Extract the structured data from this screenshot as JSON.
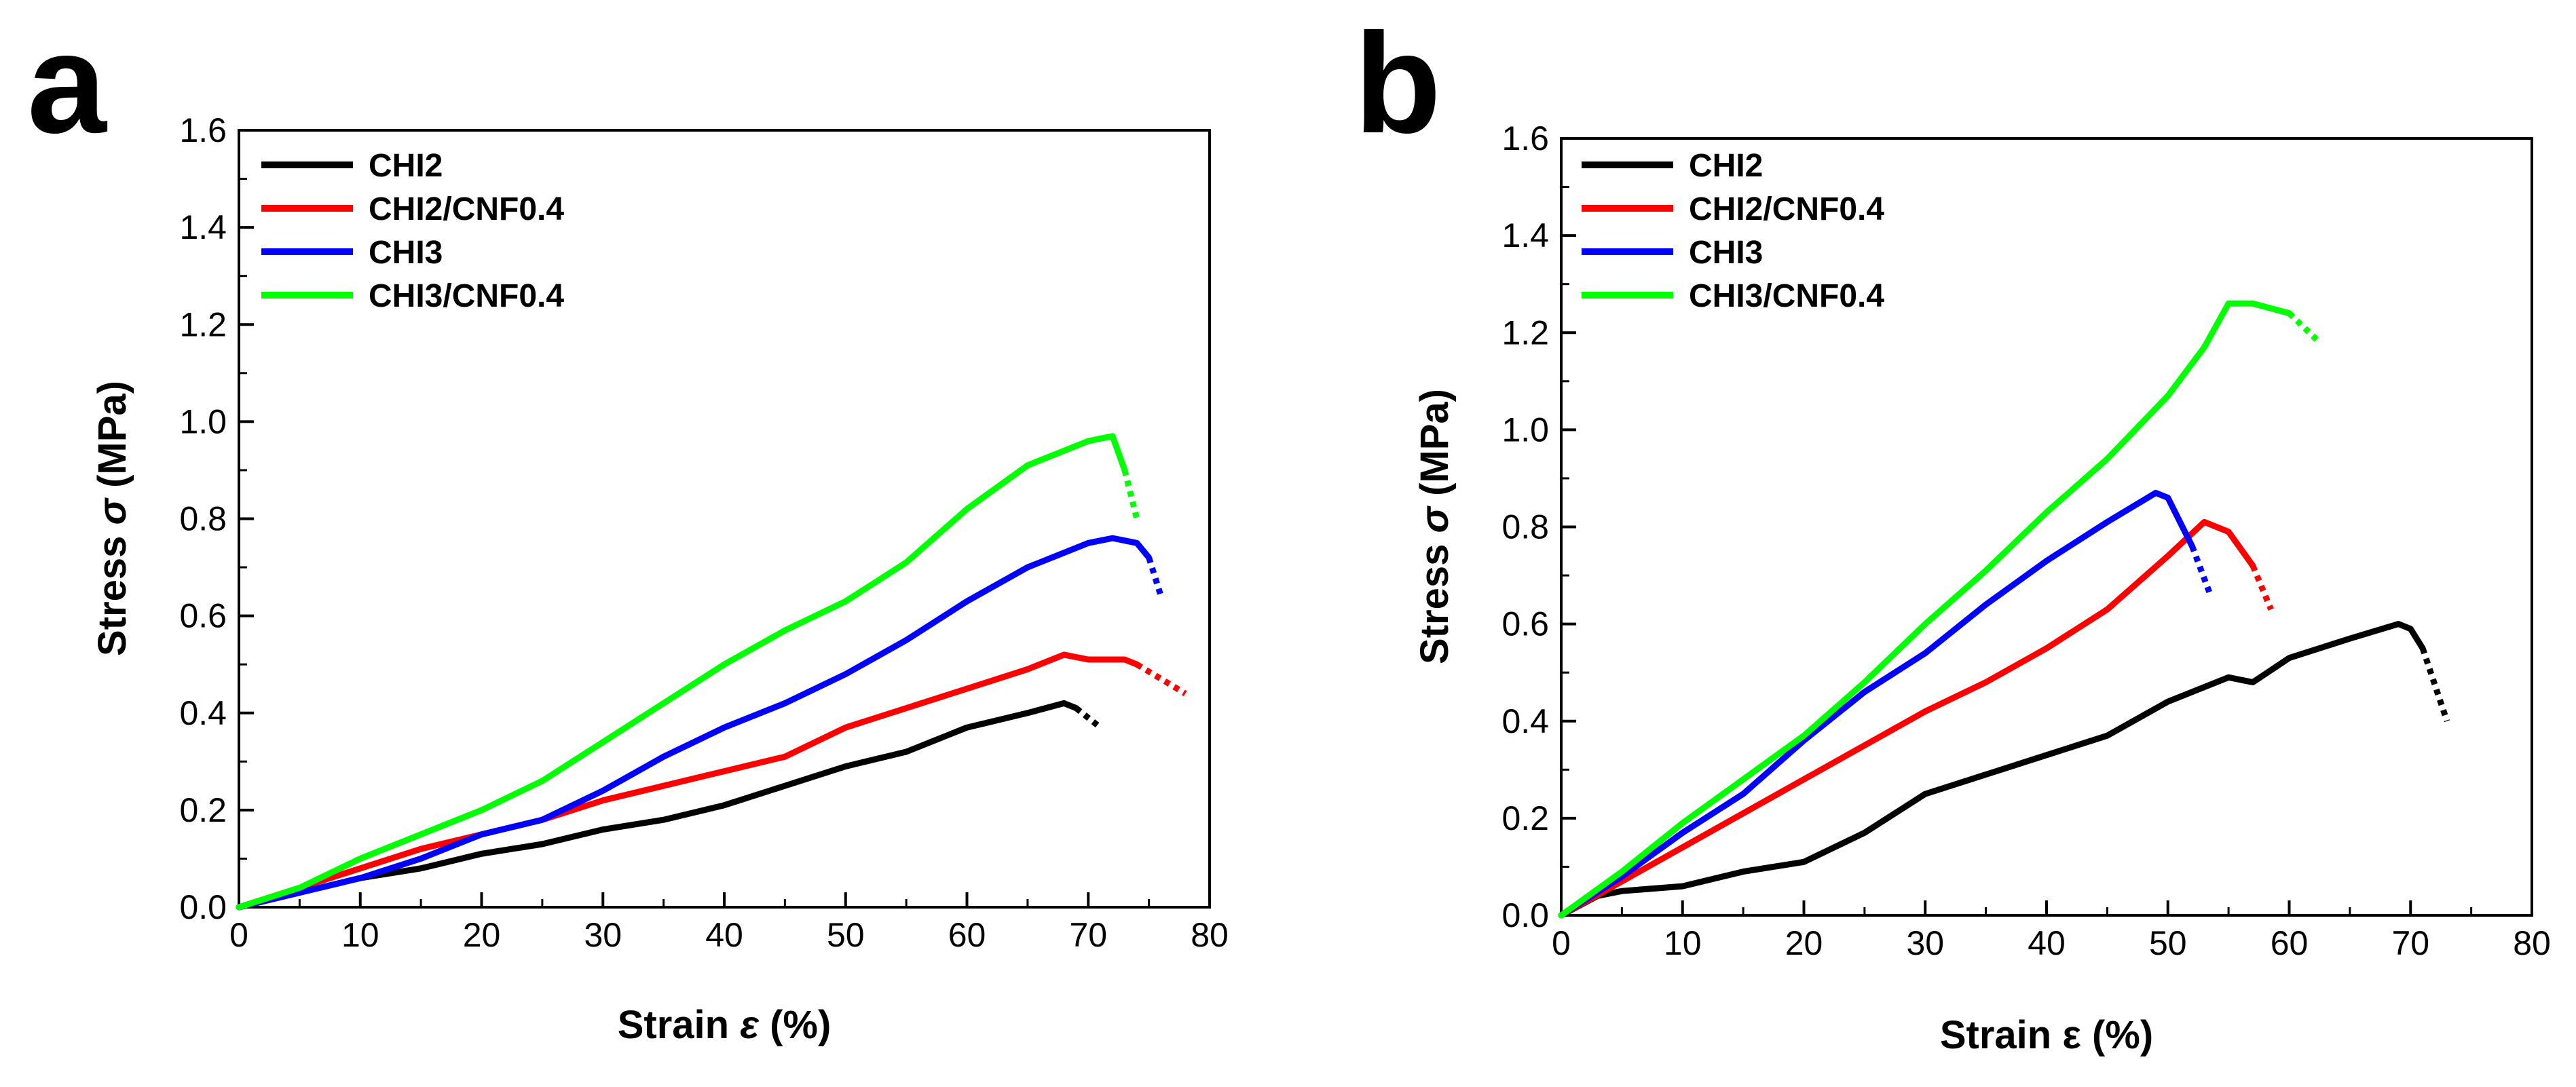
{
  "chart_data": [
    {
      "panel": "a",
      "type": "line",
      "xlabel_main": "Strain ",
      "xlabel_symbol": "ε",
      "xlabel_unit": " (%)",
      "ylabel_main": "Stress ",
      "ylabel_symbol": "σ",
      "ylabel_unit": " (MPa)",
      "xlim": [
        0,
        80
      ],
      "ylim": [
        0,
        1.6
      ],
      "xticks": [
        "0",
        "10",
        "20",
        "30",
        "40",
        "50",
        "60",
        "70",
        "80"
      ],
      "yticks": [
        "0.0",
        "0.2",
        "0.4",
        "0.6",
        "0.8",
        "1.0",
        "1.2",
        "1.4",
        "1.6"
      ],
      "legend_position": "top-left",
      "series": [
        {
          "name": "CHI2",
          "color": "#000000",
          "points": [
            [
              0,
              0
            ],
            [
              5,
              0.03
            ],
            [
              10,
              0.06
            ],
            [
              15,
              0.08
            ],
            [
              20,
              0.11
            ],
            [
              25,
              0.13
            ],
            [
              30,
              0.16
            ],
            [
              35,
              0.18
            ],
            [
              40,
              0.21
            ],
            [
              45,
              0.25
            ],
            [
              50,
              0.29
            ],
            [
              55,
              0.32
            ],
            [
              60,
              0.37
            ],
            [
              65,
              0.4
            ],
            [
              68,
              0.42
            ],
            [
              69,
              0.41
            ]
          ],
          "break": [
            [
              69,
              0.41
            ],
            [
              71,
              0.37
            ]
          ]
        },
        {
          "name": "CHI2/CNF0.4",
          "color": "#ff0000",
          "points": [
            [
              0,
              0
            ],
            [
              5,
              0.04
            ],
            [
              10,
              0.08
            ],
            [
              15,
              0.12
            ],
            [
              20,
              0.15
            ],
            [
              25,
              0.18
            ],
            [
              30,
              0.22
            ],
            [
              35,
              0.25
            ],
            [
              40,
              0.28
            ],
            [
              45,
              0.31
            ],
            [
              50,
              0.37
            ],
            [
              55,
              0.41
            ],
            [
              60,
              0.45
            ],
            [
              65,
              0.49
            ],
            [
              68,
              0.52
            ],
            [
              70,
              0.51
            ],
            [
              73,
              0.51
            ],
            [
              74,
              0.5
            ]
          ],
          "break": [
            [
              74,
              0.5
            ],
            [
              78,
              0.44
            ]
          ]
        },
        {
          "name": "CHI3",
          "color": "#0000ff",
          "points": [
            [
              0,
              0
            ],
            [
              5,
              0.03
            ],
            [
              10,
              0.06
            ],
            [
              15,
              0.1
            ],
            [
              20,
              0.15
            ],
            [
              25,
              0.18
            ],
            [
              30,
              0.24
            ],
            [
              35,
              0.31
            ],
            [
              40,
              0.37
            ],
            [
              45,
              0.42
            ],
            [
              50,
              0.48
            ],
            [
              55,
              0.55
            ],
            [
              60,
              0.63
            ],
            [
              65,
              0.7
            ],
            [
              70,
              0.75
            ],
            [
              72,
              0.76
            ],
            [
              74,
              0.75
            ],
            [
              75,
              0.72
            ]
          ],
          "break": [
            [
              75,
              0.72
            ],
            [
              76,
              0.64
            ]
          ]
        },
        {
          "name": "CHI3/CNF0.4",
          "color": "#00ff00",
          "points": [
            [
              0,
              0
            ],
            [
              5,
              0.04
            ],
            [
              10,
              0.1
            ],
            [
              15,
              0.15
            ],
            [
              20,
              0.2
            ],
            [
              25,
              0.26
            ],
            [
              30,
              0.34
            ],
            [
              35,
              0.42
            ],
            [
              40,
              0.5
            ],
            [
              45,
              0.57
            ],
            [
              50,
              0.63
            ],
            [
              55,
              0.71
            ],
            [
              60,
              0.82
            ],
            [
              65,
              0.91
            ],
            [
              70,
              0.96
            ],
            [
              72,
              0.97
            ],
            [
              73,
              0.9
            ]
          ],
          "break": [
            [
              73,
              0.9
            ],
            [
              74,
              0.8
            ]
          ]
        }
      ]
    },
    {
      "panel": "b",
      "type": "line",
      "xlabel_main": "Strain ",
      "xlabel_symbol": "ε",
      "xlabel_unit": " (%)",
      "ylabel_main": "Stress ",
      "ylabel_symbol": "σ",
      "ylabel_unit": " (MPa)",
      "xlim": [
        0,
        80
      ],
      "ylim": [
        0,
        1.6
      ],
      "xticks": [
        "0",
        "10",
        "20",
        "30",
        "40",
        "50",
        "60",
        "70",
        "80"
      ],
      "yticks": [
        "0.0",
        "0.2",
        "0.4",
        "0.6",
        "0.8",
        "1.0",
        "1.2",
        "1.4",
        "1.6"
      ],
      "legend_position": "top-left",
      "series": [
        {
          "name": "CHI2",
          "color": "#000000",
          "points": [
            [
              0,
              0
            ],
            [
              3,
              0.04
            ],
            [
              5,
              0.05
            ],
            [
              10,
              0.06
            ],
            [
              15,
              0.09
            ],
            [
              20,
              0.11
            ],
            [
              25,
              0.17
            ],
            [
              30,
              0.25
            ],
            [
              35,
              0.29
            ],
            [
              40,
              0.33
            ],
            [
              45,
              0.37
            ],
            [
              50,
              0.44
            ],
            [
              55,
              0.49
            ],
            [
              57,
              0.48
            ],
            [
              60,
              0.53
            ],
            [
              65,
              0.57
            ],
            [
              69,
              0.6
            ],
            [
              70,
              0.59
            ],
            [
              71,
              0.55
            ]
          ],
          "break": [
            [
              71,
              0.55
            ],
            [
              73,
              0.4
            ]
          ]
        },
        {
          "name": "CHI2/CNF0.4",
          "color": "#ff0000",
          "points": [
            [
              0,
              0
            ],
            [
              5,
              0.07
            ],
            [
              10,
              0.14
            ],
            [
              15,
              0.21
            ],
            [
              20,
              0.28
            ],
            [
              25,
              0.35
            ],
            [
              30,
              0.42
            ],
            [
              35,
              0.48
            ],
            [
              40,
              0.55
            ],
            [
              45,
              0.63
            ],
            [
              50,
              0.74
            ],
            [
              53,
              0.81
            ],
            [
              55,
              0.79
            ],
            [
              57,
              0.72
            ]
          ],
          "break": [
            [
              57,
              0.72
            ],
            [
              58.5,
              0.63
            ]
          ]
        },
        {
          "name": "CHI3",
          "color": "#0000ff",
          "points": [
            [
              0,
              0
            ],
            [
              5,
              0.08
            ],
            [
              10,
              0.17
            ],
            [
              15,
              0.25
            ],
            [
              20,
              0.36
            ],
            [
              25,
              0.46
            ],
            [
              30,
              0.54
            ],
            [
              35,
              0.64
            ],
            [
              40,
              0.73
            ],
            [
              45,
              0.81
            ],
            [
              49,
              0.87
            ],
            [
              50,
              0.86
            ],
            [
              52,
              0.76
            ]
          ],
          "break": [
            [
              52,
              0.76
            ],
            [
              53.5,
              0.66
            ]
          ]
        },
        {
          "name": "CHI3/CNF0.4",
          "color": "#00ff00",
          "points": [
            [
              0,
              0
            ],
            [
              5,
              0.09
            ],
            [
              10,
              0.19
            ],
            [
              15,
              0.28
            ],
            [
              20,
              0.37
            ],
            [
              25,
              0.48
            ],
            [
              30,
              0.6
            ],
            [
              35,
              0.71
            ],
            [
              40,
              0.83
            ],
            [
              45,
              0.94
            ],
            [
              50,
              1.07
            ],
            [
              53,
              1.17
            ],
            [
              55,
              1.26
            ],
            [
              57,
              1.26
            ],
            [
              60,
              1.24
            ]
          ],
          "break": [
            [
              60,
              1.24
            ],
            [
              62.5,
              1.18
            ]
          ]
        }
      ]
    }
  ]
}
